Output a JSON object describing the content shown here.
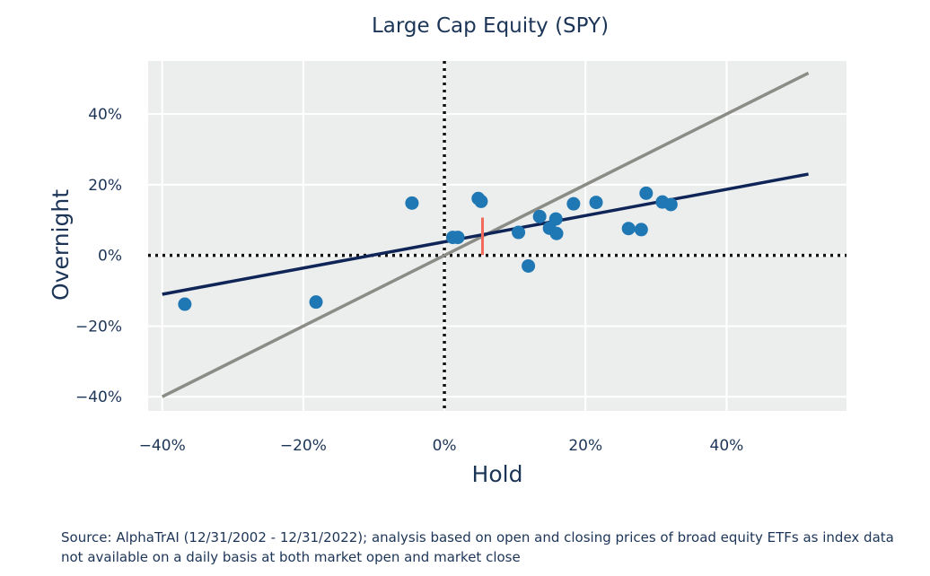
{
  "chart_data": {
    "type": "scatter",
    "title": "Large Cap Equity (SPY)",
    "xlabel": "Hold",
    "ylabel": "Overnight",
    "xlim": [
      -42,
      57
    ],
    "ylim": [
      -44,
      55
    ],
    "xticks": [
      -40,
      -20,
      0,
      20,
      40
    ],
    "yticks": [
      -40,
      -20,
      0,
      20,
      40
    ],
    "xtick_labels": [
      "−40%",
      "−20%",
      "0%",
      "20%",
      "40%"
    ],
    "ytick_labels": [
      "−40%",
      "−20%",
      "0%",
      "20%",
      "40%"
    ],
    "grid": true,
    "points": [
      {
        "x": -36.8,
        "y": -13.8
      },
      {
        "x": -18.2,
        "y": -13.2
      },
      {
        "x": -4.6,
        "y": 14.8
      },
      {
        "x": 1.2,
        "y": 5.1
      },
      {
        "x": 1.9,
        "y": 5.1
      },
      {
        "x": 4.8,
        "y": 16.1
      },
      {
        "x": 5.2,
        "y": 15.3
      },
      {
        "x": 10.5,
        "y": 6.5
      },
      {
        "x": 11.9,
        "y": -3.0
      },
      {
        "x": 13.5,
        "y": 11.0
      },
      {
        "x": 14.9,
        "y": 7.7
      },
      {
        "x": 15.8,
        "y": 10.3
      },
      {
        "x": 15.9,
        "y": 6.2
      },
      {
        "x": 18.3,
        "y": 14.6
      },
      {
        "x": 21.5,
        "y": 15.0
      },
      {
        "x": 26.1,
        "y": 7.6
      },
      {
        "x": 27.9,
        "y": 7.3
      },
      {
        "x": 28.6,
        "y": 17.6
      },
      {
        "x": 30.9,
        "y": 15.1
      },
      {
        "x": 32.1,
        "y": 14.4
      }
    ],
    "regression_line": {
      "x": [
        -40,
        51.6
      ],
      "y": [
        -11.0,
        23.0
      ],
      "color": "#0f2557"
    },
    "identity_line": {
      "x": [
        -40,
        51.6
      ],
      "y": [
        -40,
        51.6
      ],
      "color": "#8c8c86"
    },
    "mean_marker": {
      "x": 5.4,
      "y_from": 0.1,
      "y_to": 10.7,
      "color": "#f26a5b"
    },
    "reference_lines": {
      "x": 0,
      "y": 0,
      "style": "dotted"
    },
    "colors": {
      "points": "#1f77b4",
      "plot_bg": "#eceeed",
      "grid": "#ffffff",
      "text": "#1c3557"
    }
  },
  "source_note": "Source: AlphaTrAI (12/31/2002 - 12/31/2022); analysis based on open and closing prices of broad equity ETFs as index data not available on a daily basis at both market open and market close"
}
